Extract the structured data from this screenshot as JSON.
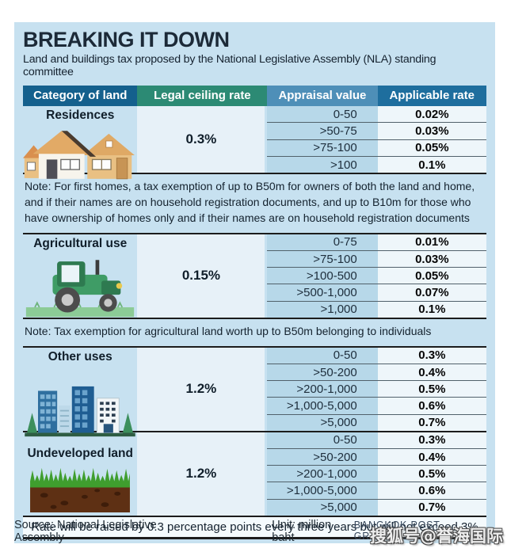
{
  "header": {
    "title": "BREAKING IT DOWN",
    "subtitle": "Land and buildings tax proposed by the National Legislative Assembly (NLA) standing committee"
  },
  "table": {
    "columns": [
      "Category of land",
      "Legal ceiling rate",
      "Appraisal value",
      "Applicable rate"
    ],
    "sections": [
      {
        "category": "Residences",
        "icon": "houses-icon",
        "ceiling_rate": "0.3%",
        "rows": [
          {
            "appraisal": "0-50",
            "rate": "0.02%"
          },
          {
            "appraisal": ">50-75",
            "rate": "0.03%"
          },
          {
            "appraisal": ">75-100",
            "rate": "0.05%"
          },
          {
            "appraisal": ">100",
            "rate": "0.1%"
          }
        ],
        "note": "Note: For first homes, a tax exemption of up to B50m for owners of both the land and home, and if their names are on household registration documents, and up to B10m for those who have ownership of homes only and if their names are on household registration documents"
      },
      {
        "category": "Agricultural use",
        "icon": "tractor-icon",
        "ceiling_rate": "0.15%",
        "rows": [
          {
            "appraisal": "0-75",
            "rate": "0.01%"
          },
          {
            "appraisal": ">75-100",
            "rate": "0.03%"
          },
          {
            "appraisal": ">100-500",
            "rate": "0.05%"
          },
          {
            "appraisal": ">500-1,000",
            "rate": "0.07%"
          },
          {
            "appraisal": ">1,000",
            "rate": "0.1%"
          }
        ],
        "note": "Note: Tax exemption for agricultural land worth up to B50m belonging to individuals"
      },
      {
        "category": "Other uses",
        "icon": "buildings-icon",
        "ceiling_rate": "1.2%",
        "rows": [
          {
            "appraisal": "0-50",
            "rate": "0.3%"
          },
          {
            "appraisal": ">50-200",
            "rate": "0.4%"
          },
          {
            "appraisal": ">200-1,000",
            "rate": "0.5%"
          },
          {
            "appraisal": ">1,000-5,000",
            "rate": "0.6%"
          },
          {
            "appraisal": ">5,000",
            "rate": "0.7%"
          }
        ],
        "note": null
      },
      {
        "category": "Undeveloped land",
        "icon": "grass-soil-icon",
        "ceiling_rate": "1.2%",
        "rows": [
          {
            "appraisal": "0-50",
            "rate": "0.3%"
          },
          {
            "appraisal": ">50-200",
            "rate": "0.4%"
          },
          {
            "appraisal": ">200-1,000",
            "rate": "0.5%"
          },
          {
            "appraisal": ">1,000-5,000",
            "rate": "0.6%"
          },
          {
            "appraisal": ">5,000",
            "rate": "0.7%"
          }
        ],
        "note": null
      }
    ],
    "footer_note": "Rate will be raised by 0.3 percentage points every three years but will not exceed 3%"
  },
  "footer": {
    "source": "Source: National Legislative Assembly",
    "unit": "Unit: million baht",
    "credit": "BANGKOK POST GRAPHICS",
    "watermark": "搜狐号@誉海国际"
  },
  "colors": {
    "card_bg": "#c7e1f0",
    "header_category_bg": "#14608d",
    "header_ceiling_bg": "#2c8a74",
    "header_appraisal_bg": "#4e8fb8",
    "header_rate_bg": "#1e6e9e",
    "ceiling_cell_bg": "#e7f1f8",
    "appraisal_cell_bg": "#b7d8e9",
    "rate_cell_bg": "#eef6fa",
    "section_divider": "#1c1c1c"
  },
  "chart_data": {
    "type": "table",
    "title": "BREAKING IT DOWN",
    "subtitle": "Land and buildings tax proposed by the National Legislative Assembly (NLA) standing committee",
    "unit": "million baht",
    "columns": [
      "Category of land",
      "Legal ceiling rate",
      "Appraisal value",
      "Applicable rate"
    ],
    "rows": [
      [
        "Residences",
        "0.3%",
        "0-50",
        "0.02%"
      ],
      [
        "Residences",
        "0.3%",
        ">50-75",
        "0.03%"
      ],
      [
        "Residences",
        "0.3%",
        ">75-100",
        "0.05%"
      ],
      [
        "Residences",
        "0.3%",
        ">100",
        "0.1%"
      ],
      [
        "Agricultural use",
        "0.15%",
        "0-75",
        "0.01%"
      ],
      [
        "Agricultural use",
        "0.15%",
        ">75-100",
        "0.03%"
      ],
      [
        "Agricultural use",
        "0.15%",
        ">100-500",
        "0.05%"
      ],
      [
        "Agricultural use",
        "0.15%",
        ">500-1,000",
        "0.07%"
      ],
      [
        "Agricultural use",
        "0.15%",
        ">1,000",
        "0.1%"
      ],
      [
        "Other uses",
        "1.2%",
        "0-50",
        "0.3%"
      ],
      [
        "Other uses",
        "1.2%",
        ">50-200",
        "0.4%"
      ],
      [
        "Other uses",
        "1.2%",
        ">200-1,000",
        "0.5%"
      ],
      [
        "Other uses",
        "1.2%",
        ">1,000-5,000",
        "0.6%"
      ],
      [
        "Other uses",
        "1.2%",
        ">5,000",
        "0.7%"
      ],
      [
        "Undeveloped land",
        "1.2%",
        "0-50",
        "0.3%"
      ],
      [
        "Undeveloped land",
        "1.2%",
        ">50-200",
        "0.4%"
      ],
      [
        "Undeveloped land",
        "1.2%",
        ">200-1,000",
        "0.5%"
      ],
      [
        "Undeveloped land",
        "1.2%",
        ">1,000-5,000",
        "0.6%"
      ],
      [
        "Undeveloped land",
        "1.2%",
        ">5,000",
        "0.7%"
      ]
    ],
    "footnotes": [
      "Note: For first homes, a tax exemption of up to B50m for owners of both the land and home, and if their names are on household registration documents, and up to B10m for those who have ownership of homes only and if their names are on household registration documents",
      "Note: Tax exemption for agricultural land worth up to B50m belonging to individuals",
      "Rate will be raised by 0.3 percentage points every three years but will not exceed 3%"
    ]
  }
}
